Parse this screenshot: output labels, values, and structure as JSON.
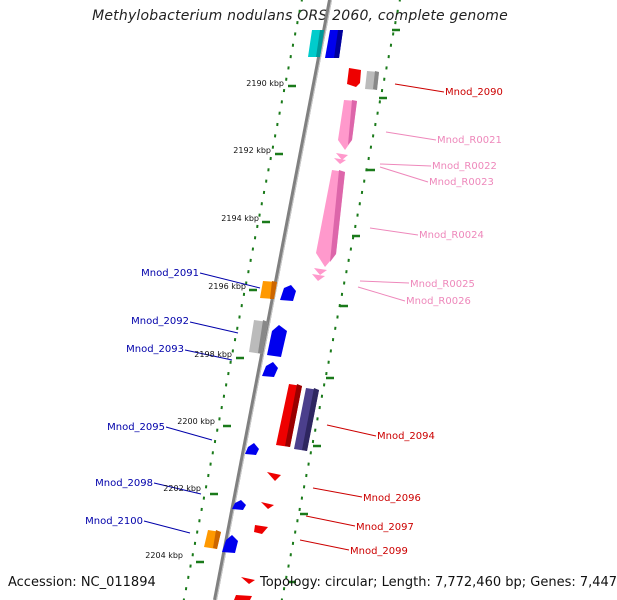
{
  "title": "Methylobacterium nodulans ORS 2060, complete genome",
  "accession": "Accession: NC_011894",
  "topology": "Topology: circular; Length: 7,772,460 bp; Genes: 7,447",
  "colors": {
    "backbone": "#8a8a8a",
    "ticks": "#1a7a1a",
    "cds": "#0000ee",
    "cds_red": "#ee0000",
    "rna": "#ff99cc",
    "orange": "#ff9900",
    "gray": "#bbbbbb",
    "cyan": "#00cccc",
    "navy": "#4b3f8c"
  },
  "scale_labels": [
    "2190 kbp",
    "2192 kbp",
    "2194 kbp",
    "2196 kbp",
    "2198 kbp",
    "2200 kbp",
    "2202 kbp",
    "2204 kbp"
  ],
  "gene_labels": [
    {
      "text": "Mnod_2090",
      "color": "#cc0000"
    },
    {
      "text": "Mnod_R0021",
      "color": "#ee88bb"
    },
    {
      "text": "Mnod_R0022",
      "color": "#ee88bb"
    },
    {
      "text": "Mnod_R0023",
      "color": "#ee88bb"
    },
    {
      "text": "Mnod_R0024",
      "color": "#ee88bb"
    },
    {
      "text": "Mnod_R0025",
      "color": "#ee88bb"
    },
    {
      "text": "Mnod_R0026",
      "color": "#ee88bb"
    },
    {
      "text": "Mnod_2094",
      "color": "#cc0000"
    },
    {
      "text": "Mnod_2096",
      "color": "#cc0000"
    },
    {
      "text": "Mnod_2097",
      "color": "#cc0000"
    },
    {
      "text": "Mnod_2099",
      "color": "#cc0000"
    },
    {
      "text": "Mnod_2091",
      "color": "#0000aa"
    },
    {
      "text": "Mnod_2092",
      "color": "#0000aa"
    },
    {
      "text": "Mnod_2093",
      "color": "#0000aa"
    },
    {
      "text": "Mnod_2095",
      "color": "#0000aa"
    },
    {
      "text": "Mnod_2098",
      "color": "#0000aa"
    },
    {
      "text": "Mnod_2100",
      "color": "#0000aa"
    }
  ]
}
